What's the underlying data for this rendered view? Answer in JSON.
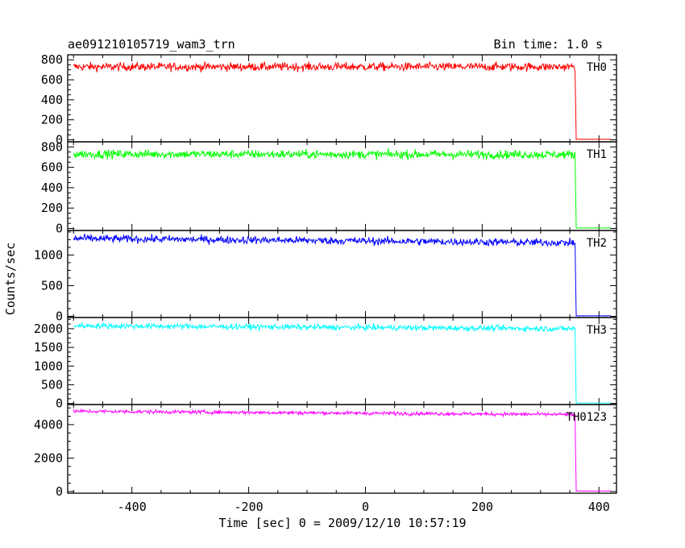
{
  "chart_data": {
    "type": "line",
    "title_left": "ae091210105719_wam3_trn",
    "title_right": "Bin time: 1.0 s",
    "xlabel": "Time [sec] 0 = 2009/12/10 10:57:19",
    "ylabel": "Counts/sec",
    "xlim": [
      -510,
      430
    ],
    "x_ticks": [
      -400,
      -200,
      0,
      200,
      400
    ],
    "x_range_data": [
      -500,
      420
    ],
    "drop_time": 360,
    "grid": false,
    "panels": [
      {
        "name": "TH0",
        "color": "#ff0000",
        "ylim": [
          -20,
          850
        ],
        "y_ticks": [
          0,
          200,
          400,
          600,
          800
        ],
        "level_start": 730,
        "level_end": 730,
        "noise": 30,
        "after_level": 5
      },
      {
        "name": "TH1",
        "color": "#00ff00",
        "ylim": [
          -20,
          850
        ],
        "y_ticks": [
          0,
          200,
          400,
          600,
          800
        ],
        "level_start": 730,
        "level_end": 725,
        "noise": 30,
        "after_level": 5
      },
      {
        "name": "TH2",
        "color": "#0000ff",
        "ylim": [
          -20,
          1400
        ],
        "y_ticks": [
          0,
          500,
          1000
        ],
        "level_start": 1270,
        "level_end": 1200,
        "noise": 45,
        "after_level": 8
      },
      {
        "name": "TH3",
        "color": "#00ffff",
        "ylim": [
          -30,
          2300
        ],
        "y_ticks": [
          0,
          500,
          1000,
          1500,
          2000
        ],
        "level_start": 2080,
        "level_end": 2000,
        "noise": 55,
        "after_level": 10
      },
      {
        "name": "TH0123",
        "color": "#ff00ff",
        "ylim": [
          -100,
          5200
        ],
        "y_ticks": [
          0,
          2000,
          4000
        ],
        "level_start": 4800,
        "level_end": 4600,
        "noise": 80,
        "after_level": 30
      }
    ]
  }
}
